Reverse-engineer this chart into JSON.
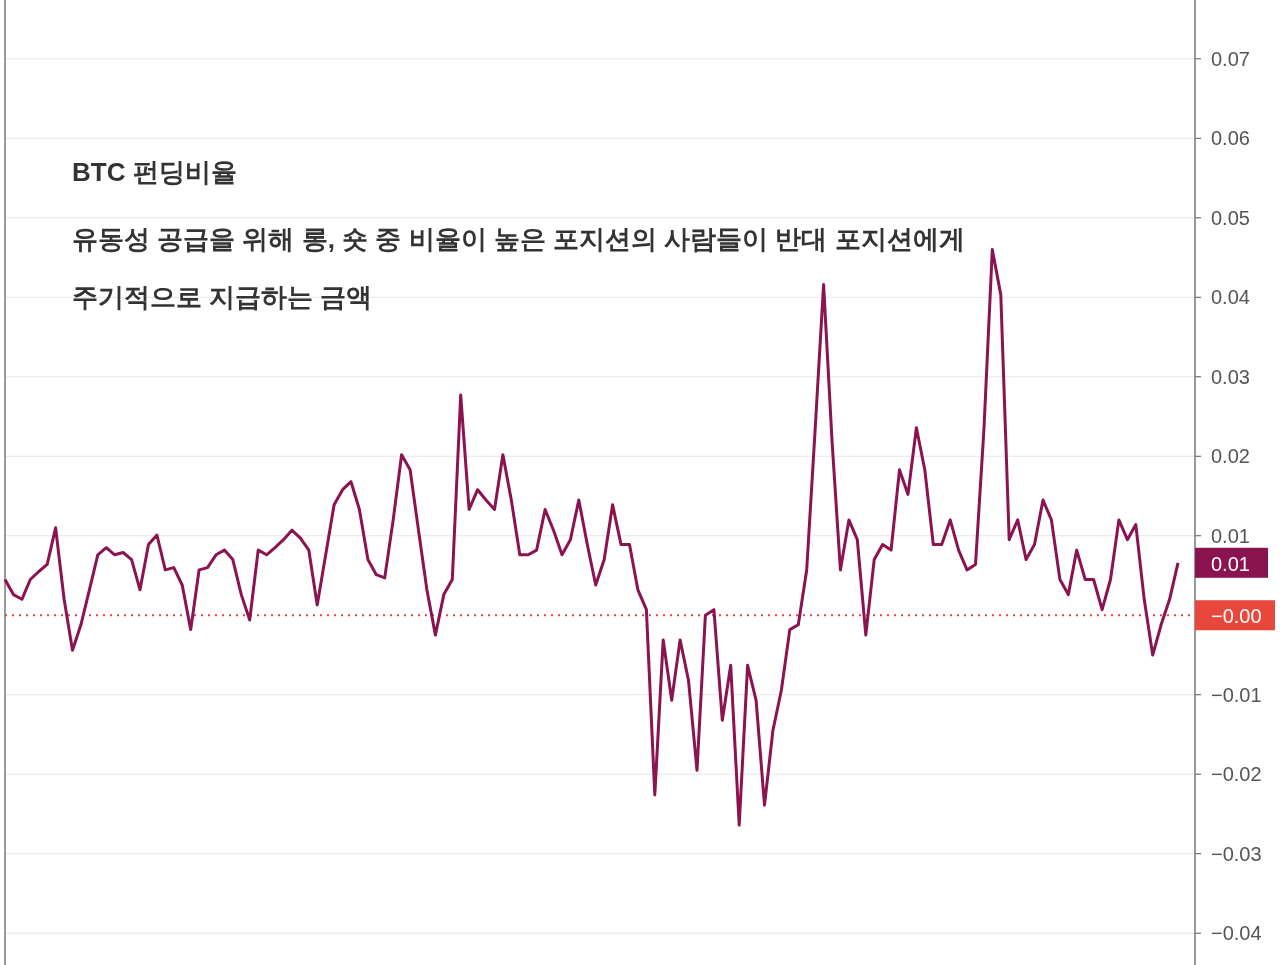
{
  "chart_data": {
    "type": "line",
    "title": "BTC 펀딩비율",
    "subtitle": "유동성 공급을 위해 롱, 숏 중 비율이 높은 포지션의 사람들이 반대 포지션에게 주기적으로 지급하는 금액",
    "categories": [
      null,
      null,
      null,
      null,
      null,
      null,
      null,
      null,
      null,
      null,
      null,
      null,
      null,
      null,
      null,
      null,
      null,
      null,
      null,
      null,
      null,
      null,
      null,
      null,
      null,
      null,
      null,
      null,
      null,
      null,
      null,
      null,
      null,
      null,
      null,
      null,
      null,
      null,
      null,
      null,
      null,
      null,
      null,
      null,
      null,
      null,
      null,
      null,
      null,
      null,
      null,
      null,
      null,
      null,
      null,
      null,
      null,
      null,
      null,
      null,
      null,
      null,
      null,
      null,
      null,
      null,
      null,
      null,
      null,
      null,
      null,
      null,
      null,
      null,
      null,
      null,
      null,
      null,
      null,
      null,
      null,
      null,
      null,
      null,
      null,
      null,
      null,
      null,
      null,
      null,
      null,
      null,
      null,
      null,
      null,
      null,
      null,
      null,
      null,
      null,
      null,
      null,
      null,
      null,
      null,
      null,
      null,
      null,
      null,
      null,
      null,
      null,
      null,
      null,
      null,
      null,
      null,
      null,
      null,
      null,
      null,
      null,
      null,
      null,
      null,
      null,
      null,
      null,
      null,
      null,
      null,
      null,
      null,
      null,
      null,
      null,
      null,
      null,
      null,
      null
    ],
    "series": [
      {
        "color": "#8b1450",
        "values": [
          0.0045,
          0.0026,
          0.002,
          0.0045,
          0.0055,
          0.0064,
          0.011,
          0.002,
          -0.0044,
          -0.0012,
          0.0032,
          0.0076,
          0.0085,
          0.0076,
          0.0079,
          0.007,
          0.0032,
          0.0089,
          0.0101,
          0.0057,
          0.006,
          0.0038,
          -0.0018,
          0.0057,
          0.006,
          0.0076,
          0.0082,
          0.007,
          0.0026,
          -0.0006,
          0.0082,
          0.0076,
          0.0085,
          0.0095,
          0.0107,
          0.0097,
          0.0082,
          0.0013,
          0.0076,
          0.0139,
          0.0158,
          0.0168,
          0.0133,
          0.007,
          0.0051,
          0.0047,
          0.012,
          0.0202,
          0.0183,
          0.0107,
          0.0032,
          -0.0025,
          0.0026,
          0.0045,
          0.0277,
          0.0133,
          0.0158,
          0.0145,
          0.0133,
          0.0202,
          0.0145,
          0.0076,
          0.0076,
          0.0082,
          0.0133,
          0.0107,
          0.0076,
          0.0095,
          0.0145,
          0.0089,
          0.0038,
          0.007,
          0.0139,
          0.0089,
          0.0089,
          0.0032,
          0.0007,
          -0.0226,
          -0.0031,
          -0.0107,
          -0.0031,
          -0.0082,
          -0.0195,
          0,
          0.0007,
          -0.0132,
          -0.0063,
          -0.0264,
          -0.0063,
          -0.0107,
          -0.0239,
          -0.0145,
          -0.0094,
          -0.0018,
          -0.0012,
          0.0057,
          0.0233,
          0.0416,
          0.022,
          0.0057,
          0.012,
          0.0095,
          -0.0025,
          0.007,
          0.0089,
          0.0082,
          0.0183,
          0.0152,
          0.0236,
          0.0183,
          0.0089,
          0.0089,
          0.012,
          0.0082,
          0.0057,
          0.0064,
          0.0233,
          0.046,
          0.0403,
          0.0095,
          0.012,
          0.007,
          0.0089,
          0.0145,
          0.012,
          0.0045,
          0.0026,
          0.0082,
          0.0045,
          0.0045,
          0.0007,
          0.0045,
          0.012,
          0.0095,
          0.0114,
          0.002,
          -0.005,
          -0.0012,
          0.002,
          0.0066
        ]
      }
    ],
    "ylim": [
      -0.044,
      0.0774
    ],
    "yticks": [
      {
        "value": -0.04,
        "label": "−0.04"
      },
      {
        "value": -0.03,
        "label": "−0.03"
      },
      {
        "value": -0.02,
        "label": "−0.02"
      },
      {
        "value": -0.01,
        "label": "−0.01"
      },
      0.01,
      0.02,
      0.03,
      0.04,
      0.05,
      0.06,
      0.07
    ],
    "grid": "y",
    "ref_lines": [
      {
        "axis": "y",
        "value": 0,
        "label": "−0.00",
        "color": "#e8473b",
        "line_style": "dotted"
      }
    ],
    "annotations": [
      "0.01"
    ]
  }
}
